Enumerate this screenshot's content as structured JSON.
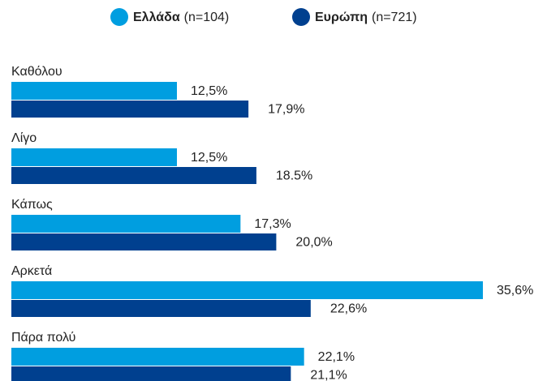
{
  "chart_data": {
    "type": "hbar",
    "categories": [
      "Καθόλου",
      "Λίγο",
      "Κάπως",
      "Αρκετά",
      "Πάρα πολύ"
    ],
    "series": [
      {
        "name": "Ελλάδα",
        "sample": "(n=104)",
        "color": "#009ee0",
        "values": [
          12.5,
          12.5,
          17.3,
          35.6,
          22.1
        ],
        "value_labels": [
          "12,5%",
          "12,5%",
          "17,3%",
          "35,6%",
          "22,1%"
        ]
      },
      {
        "name": "Ευρώπη",
        "sample": "(n=721)",
        "color": "#00408f",
        "values": [
          17.9,
          18.5,
          20.0,
          22.6,
          21.1
        ],
        "value_labels": [
          "17,9%",
          "18.5%",
          "20,0%",
          "22,6%",
          "21,1%"
        ]
      }
    ],
    "legend": "top"
  }
}
